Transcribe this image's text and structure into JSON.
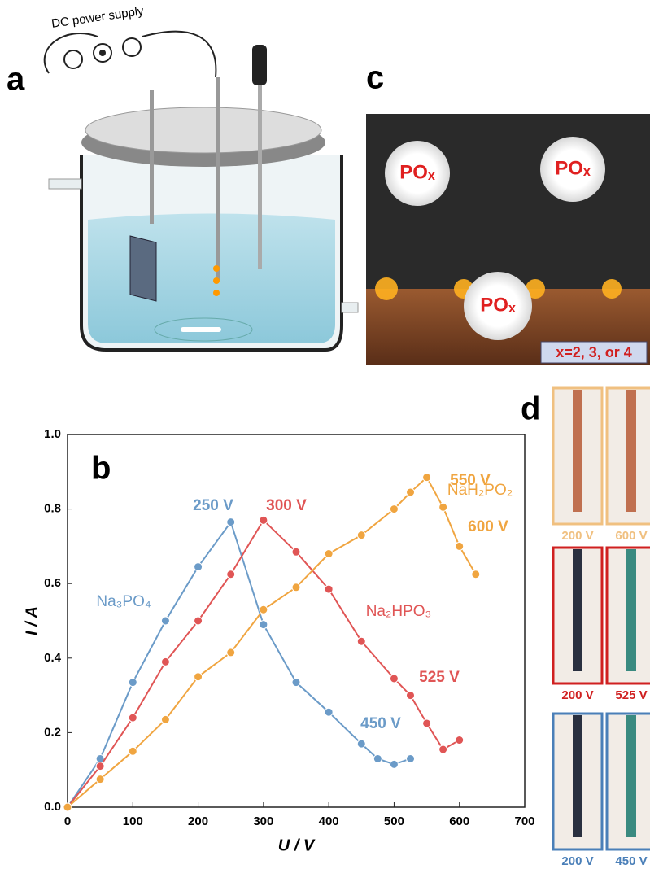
{
  "panels": {
    "a": "a",
    "b": "b",
    "c": "c",
    "d": "d"
  },
  "power_supply": "DC power supply",
  "particles": [
    "POₓ",
    "POₓ",
    "POₓ"
  ],
  "x_note": "x=2, 3, or 4",
  "photos": [
    [
      "200 V",
      "600 V"
    ],
    [
      "200 V",
      "525 V"
    ],
    [
      "200 V",
      "450 V"
    ]
  ],
  "chart_data": {
    "type": "line",
    "xlabel": "U / V",
    "ylabel": "I / A",
    "xlim": [
      0,
      700
    ],
    "ylim": [
      0,
      1.0
    ],
    "xticks": [
      0,
      100,
      200,
      300,
      400,
      500,
      600,
      700
    ],
    "yticks": [
      {
        "value": 0,
        "label": "0.0"
      },
      0.2,
      0.4,
      0.6,
      0.8,
      {
        "value": 1,
        "label": "1.0"
      }
    ],
    "series": [
      {
        "name": "Na₃PO₄",
        "color": "#6b9bc8",
        "x": [
          0,
          50,
          100,
          150,
          200,
          250,
          300,
          350,
          400,
          450,
          475,
          500,
          525
        ],
        "values": [
          0,
          0.13,
          0.335,
          0.5,
          0.645,
          0.765,
          0.49,
          0.335,
          0.255,
          0.17,
          0.13,
          0.115,
          0.13
        ]
      },
      {
        "name": "Na₂HPO₃",
        "color": "#e05555",
        "x": [
          0,
          50,
          100,
          150,
          200,
          250,
          300,
          350,
          400,
          450,
          500,
          525,
          550,
          575,
          600
        ],
        "values": [
          0,
          0.11,
          0.24,
          0.39,
          0.5,
          0.625,
          0.77,
          0.685,
          0.585,
          0.445,
          0.345,
          0.3,
          0.225,
          0.155,
          0.18
        ]
      },
      {
        "name": "NaH₂PO₂",
        "color": "#f0a540",
        "x": [
          0,
          50,
          100,
          150,
          200,
          250,
          300,
          350,
          400,
          450,
          500,
          525,
          550,
          575,
          600,
          625
        ],
        "values": [
          0,
          0.075,
          0.15,
          0.235,
          0.35,
          0.415,
          0.53,
          0.59,
          0.68,
          0.73,
          0.8,
          0.845,
          0.885,
          0.805,
          0.7,
          0.625
        ]
      }
    ],
    "annotations": [
      {
        "text": "250 V",
        "color": "#6b9bc8"
      },
      {
        "text": "300 V",
        "color": "#e05555"
      },
      {
        "text": "550 V",
        "color": "#f0a540"
      },
      {
        "text": "600 V",
        "color": "#f0a540"
      },
      {
        "text": "525 V",
        "color": "#e05555"
      },
      {
        "text": "450 V",
        "color": "#6b9bc8"
      }
    ]
  }
}
